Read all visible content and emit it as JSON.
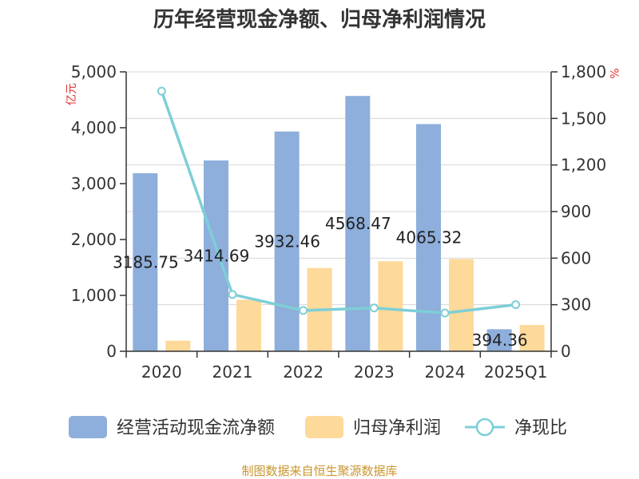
{
  "chart_data": {
    "type": "bar",
    "title": "历年经营现金净额、归母净利润情况",
    "categories": [
      "2020",
      "2021",
      "2022",
      "2023",
      "2024",
      "2025Q1"
    ],
    "y_left": {
      "unit": "亿元",
      "ylim": [
        0,
        5000
      ],
      "ticks": [
        0,
        1000,
        2000,
        3000,
        4000,
        5000
      ],
      "tick_labels": [
        "0",
        "1,000",
        "2,000",
        "3,000",
        "4,000",
        "5,000"
      ]
    },
    "y_right": {
      "unit": "%",
      "ylim": [
        0,
        1800
      ],
      "ticks": [
        0,
        300,
        600,
        900,
        1200,
        1500,
        1800
      ],
      "tick_labels": [
        "0",
        "300",
        "600",
        "900",
        "1,200",
        "1,500",
        "1,800"
      ]
    },
    "series": [
      {
        "name": "经营活动现金流净额",
        "kind": "bar",
        "axis": "left",
        "color": "#8eaedb",
        "values": [
          3185.75,
          3414.69,
          3932.46,
          4568.47,
          4065.32,
          394.36
        ],
        "labels": [
          "3185.75",
          "3414.69",
          "3932.46",
          "4568.47",
          "4065.32",
          "394.36"
        ]
      },
      {
        "name": "归母净利润",
        "kind": "bar",
        "axis": "left",
        "color": "#fdd99a",
        "values": [
          190,
          920,
          1490,
          1610,
          1650,
          470
        ]
      },
      {
        "name": "净现比",
        "kind": "line",
        "axis": "right",
        "color": "#7ecfd6",
        "values": [
          1676,
          366,
          263,
          279,
          246,
          300
        ]
      }
    ],
    "grid": true,
    "legend_position": "bottom",
    "source": "制图数据来自恒生聚源数据库"
  }
}
